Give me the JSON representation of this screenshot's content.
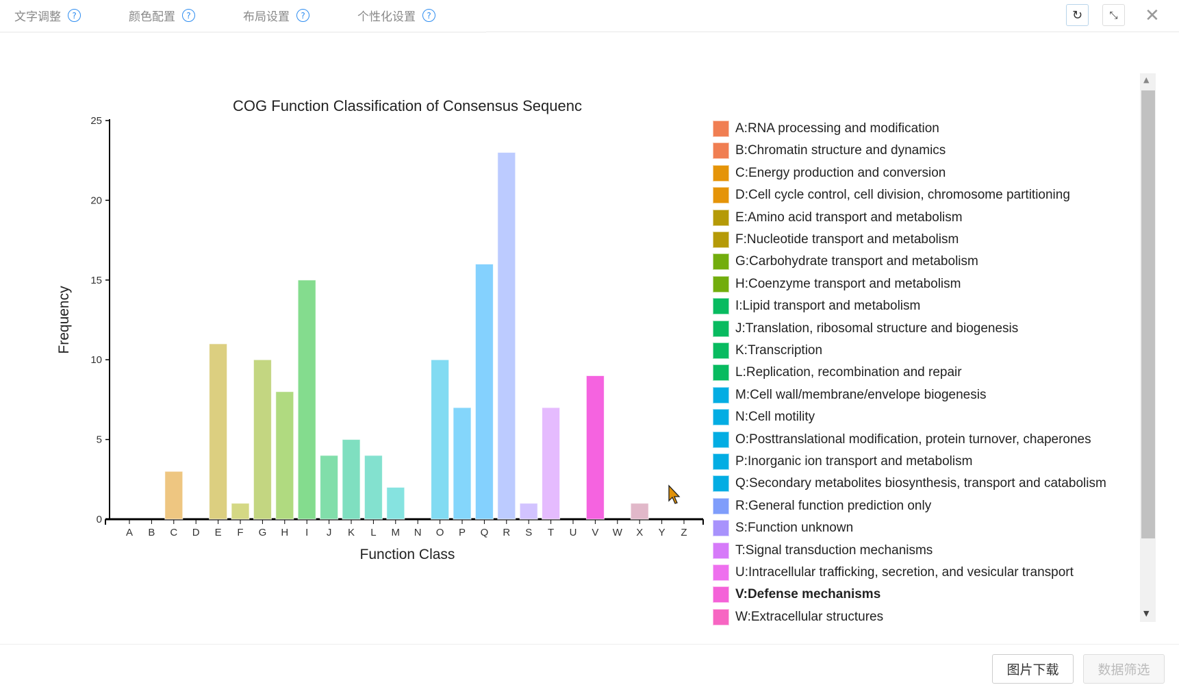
{
  "tabs": [
    {
      "label": "文字调整"
    },
    {
      "label": "颜色配置"
    },
    {
      "label": "布局设置"
    },
    {
      "label": "个性化设置"
    }
  ],
  "toolbar": {
    "refresh_icon": "refresh-icon",
    "fullscreen_icon": "collapse-icon",
    "close_icon": "close-icon"
  },
  "footer": {
    "download_label": "图片下载",
    "filter_label": "数据筛选"
  },
  "chart_data": {
    "type": "bar",
    "title": "COG Function Classification of Consensus Sequenc",
    "xlabel": "Function Class",
    "ylabel": "Frequency",
    "ylim": [
      0,
      25
    ],
    "yticks": [
      "0",
      "5",
      "10",
      "15",
      "20",
      "25"
    ],
    "categories": [
      "A",
      "B",
      "C",
      "D",
      "E",
      "F",
      "G",
      "H",
      "I",
      "J",
      "K",
      "L",
      "M",
      "N",
      "O",
      "P",
      "Q",
      "R",
      "S",
      "T",
      "U",
      "V",
      "W",
      "X",
      "Y",
      "Z"
    ],
    "values": [
      0,
      0,
      3,
      0,
      11,
      1,
      10,
      8,
      15,
      4,
      5,
      4,
      2,
      0,
      10,
      7,
      16,
      23,
      1,
      7,
      0,
      9,
      0,
      1,
      0,
      0
    ],
    "bar_colors": [
      "#f2a08a",
      "#f2a08a",
      "#eec681",
      "#eec681",
      "#dccf80",
      "#d4d884",
      "#c3d681",
      "#b0da80",
      "#84dc8e",
      "#81deaa",
      "#7fdfc0",
      "#83e1cf",
      "#86e3e0",
      "#86e3e0",
      "#82dbf2",
      "#84d6fb",
      "#84d1fe",
      "#bccbff",
      "#d2c3ff",
      "#e5bbfe",
      "#eeb5f5",
      "#f563e0",
      "#f58fd0",
      "#e1b8c9",
      "#e1b8c9",
      "#e1b8c9"
    ],
    "grid": false,
    "legend_position": "right",
    "legend": [
      {
        "label": "A:RNA processing and modification",
        "color": "#f07e52"
      },
      {
        "label": "B:Chromatin structure and dynamics",
        "color": "#f07e52"
      },
      {
        "label": "C:Energy production and conversion",
        "color": "#e59408"
      },
      {
        "label": "D:Cell cycle control, cell division, chromosome partitioning",
        "color": "#e59408"
      },
      {
        "label": "E:Amino acid transport and metabolism",
        "color": "#b59a07"
      },
      {
        "label": "F:Nucleotide transport and metabolism",
        "color": "#b59a07"
      },
      {
        "label": "G:Carbohydrate transport and metabolism",
        "color": "#72ad0d"
      },
      {
        "label": "H:Coenzyme transport and metabolism",
        "color": "#72ad0d"
      },
      {
        "label": "I:Lipid transport and metabolism",
        "color": "#08bb60"
      },
      {
        "label": "J:Translation, ribosomal structure and biogenesis",
        "color": "#08bb60"
      },
      {
        "label": "K:Transcription",
        "color": "#08bb60"
      },
      {
        "label": "L:Replication, recombination and repair",
        "color": "#08bb60"
      },
      {
        "label": "M:Cell wall/membrane/envelope biogenesis",
        "color": "#03ade3"
      },
      {
        "label": "N:Cell motility",
        "color": "#03ade3"
      },
      {
        "label": "O:Posttranslational modification, protein turnover, chaperones",
        "color": "#03ade3"
      },
      {
        "label": "P:Inorganic ion transport and metabolism",
        "color": "#03ade3"
      },
      {
        "label": "Q:Secondary metabolites biosynthesis, transport and catabolism",
        "color": "#03ade3"
      },
      {
        "label": "R:General function prediction only",
        "color": "#7f9dfb"
      },
      {
        "label": "S:Function unknown",
        "color": "#a892fc"
      },
      {
        "label": "T:Signal transduction mechanisms",
        "color": "#d67af9"
      },
      {
        "label": "U:Intracellular trafficking, secretion, and vesicular transport",
        "color": "#ee70ee"
      },
      {
        "label": "V:Defense mechanisms",
        "color": "#f462d8",
        "highlighted": true
      },
      {
        "label": "W:Extracellular structures",
        "color": "#f765c2"
      }
    ]
  }
}
